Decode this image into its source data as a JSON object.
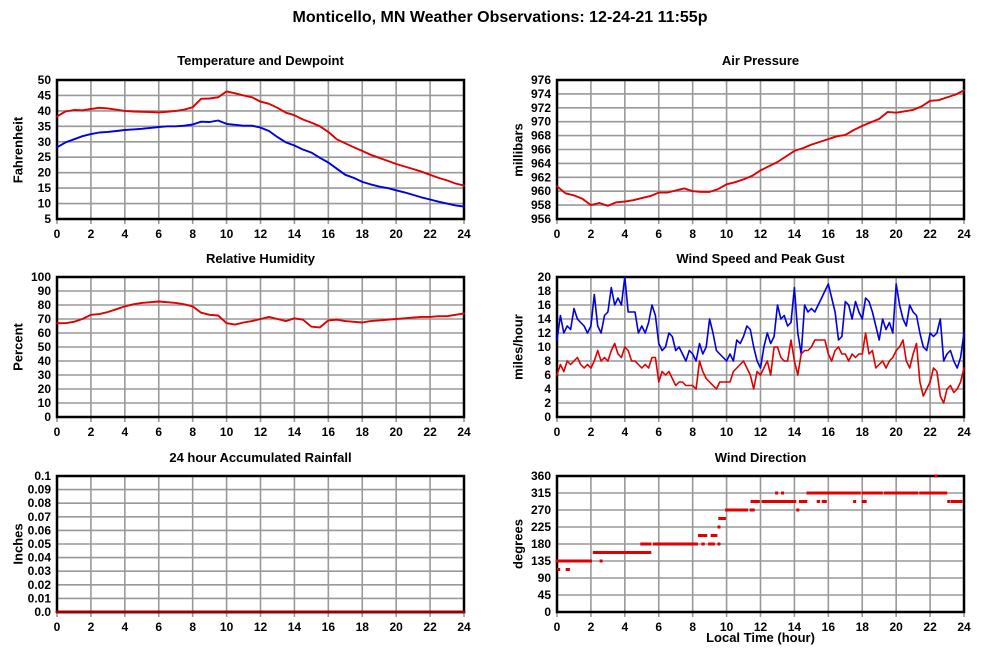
{
  "page": {
    "title": "Monticello, MN Weather Observations: 12-24-21 11:55p"
  },
  "colors": {
    "red": "#e00000",
    "blue": "#0000e0",
    "dark_red": "#990000",
    "grid": "#999999",
    "axis": "#000000",
    "background": "#ffffff"
  },
  "x_axis_label": "Local Time (hour)",
  "chart_data": [
    {
      "type": "line",
      "title": "Temperature and Dewpoint",
      "ylabel": "Fahrenheit",
      "xlabel": "",
      "xlim": [
        0,
        24
      ],
      "xtick_labels": [
        "0",
        "2",
        "4",
        "6",
        "8",
        "10",
        "12",
        "14",
        "16",
        "18",
        "20",
        "22",
        "24"
      ],
      "ylim": [
        5,
        50
      ],
      "ytick_labels": [
        "50",
        "45",
        "40",
        "35",
        "30",
        "25",
        "20",
        "15",
        "10",
        "5"
      ],
      "grid": true,
      "legend": "none",
      "series": [
        {
          "name": "temperature",
          "color": "red",
          "width": 1.9,
          "x0": 0,
          "dx": 0.5,
          "y": [
            38.2,
            39.8,
            40.3,
            40.2,
            40.6,
            41.0,
            40.8,
            40.4,
            40.0,
            39.8,
            39.7,
            39.6,
            39.5,
            39.7,
            40.0,
            40.4,
            41.2,
            43.9,
            44.0,
            44.4,
            46.3,
            45.7,
            45.0,
            44.4,
            43.0,
            42.3,
            41.0,
            39.4,
            38.6,
            37.2,
            36.2,
            35.0,
            33.2,
            30.8,
            29.5,
            28.2,
            27.0,
            25.8,
            24.8,
            23.8,
            22.8,
            22.0,
            21.2,
            20.3,
            19.3,
            18.3,
            17.5,
            16.5,
            15.8
          ]
        },
        {
          "name": "dewpoint",
          "color": "blue",
          "width": 1.9,
          "x0": 0,
          "dx": 0.5,
          "y": [
            28.2,
            29.8,
            30.8,
            31.8,
            32.5,
            33.0,
            33.2,
            33.5,
            33.8,
            34.0,
            34.2,
            34.5,
            34.8,
            35.0,
            35.0,
            35.2,
            35.6,
            36.5,
            36.4,
            36.9,
            35.8,
            35.5,
            35.2,
            35.2,
            34.6,
            33.5,
            31.5,
            29.8,
            28.8,
            27.5,
            26.5,
            24.8,
            23.3,
            21.3,
            19.3,
            18.3,
            17.0,
            16.2,
            15.5,
            15.0,
            14.3,
            13.6,
            12.8,
            12.0,
            11.3,
            10.6,
            10.0,
            9.4,
            9.0
          ]
        }
      ]
    },
    {
      "type": "line",
      "title": "Air Pressure",
      "ylabel": "millibars",
      "xlabel": "",
      "xlim": [
        0,
        24
      ],
      "xtick_labels": [
        "0",
        "2",
        "4",
        "6",
        "8",
        "10",
        "12",
        "14",
        "16",
        "18",
        "20",
        "22",
        "24"
      ],
      "ylim": [
        956,
        976
      ],
      "ytick_labels": [
        "976",
        "974",
        "972",
        "970",
        "968",
        "966",
        "964",
        "962",
        "960",
        "958",
        "956"
      ],
      "grid": true,
      "legend": "none",
      "series": [
        {
          "name": "pressure",
          "color": "red",
          "width": 1.9,
          "x0": 0,
          "dx": 0.5,
          "y": [
            960.7,
            959.7,
            959.4,
            958.9,
            958.0,
            958.3,
            957.9,
            958.4,
            958.5,
            958.7,
            959.0,
            959.3,
            959.8,
            959.8,
            960.1,
            960.4,
            960.0,
            959.9,
            959.9,
            960.3,
            961.0,
            961.3,
            961.7,
            962.2,
            963.0,
            963.6,
            964.2,
            965.0,
            965.8,
            966.2,
            966.7,
            967.1,
            967.5,
            967.9,
            968.1,
            968.8,
            969.4,
            969.9,
            970.4,
            971.4,
            971.3,
            971.5,
            971.7,
            972.2,
            973.0,
            973.1,
            973.5,
            973.9,
            974.5
          ]
        }
      ]
    },
    {
      "type": "line",
      "title": "Relative Humidity",
      "ylabel": "Percent",
      "xlabel": "",
      "xlim": [
        0,
        24
      ],
      "xtick_labels": [
        "0",
        "2",
        "4",
        "6",
        "8",
        "10",
        "12",
        "14",
        "16",
        "18",
        "20",
        "22",
        "24"
      ],
      "ylim": [
        0,
        100
      ],
      "ytick_labels": [
        "100",
        "90",
        "80",
        "70",
        "60",
        "50",
        "40",
        "30",
        "20",
        "10",
        "0"
      ],
      "grid": true,
      "legend": "none",
      "series": [
        {
          "name": "humidity",
          "color": "red",
          "width": 1.9,
          "x0": 0,
          "dx": 0.5,
          "y": [
            67,
            67,
            68,
            70,
            73,
            73.5,
            75,
            77,
            79,
            80.5,
            81.5,
            82,
            82.5,
            82,
            81.5,
            80.5,
            79,
            74.5,
            73,
            72.5,
            67,
            66,
            67.5,
            68.5,
            70,
            71.5,
            70,
            68.5,
            70.5,
            69.5,
            64.5,
            64,
            69,
            69.5,
            68.5,
            68,
            67.5,
            68.5,
            69,
            69.5,
            70,
            70.5,
            71,
            71.5,
            71.5,
            72,
            72,
            73,
            74
          ]
        }
      ]
    },
    {
      "type": "line",
      "title": "Wind Speed and Peak Gust",
      "ylabel": "miles/hour",
      "xlabel": "",
      "xlim": [
        0,
        24
      ],
      "xtick_labels": [
        "0",
        "2",
        "4",
        "6",
        "8",
        "10",
        "12",
        "14",
        "16",
        "18",
        "20",
        "22",
        "24"
      ],
      "ylim": [
        0,
        20
      ],
      "ytick_labels": [
        "20",
        "18",
        "16",
        "14",
        "12",
        "10",
        "8",
        "6",
        "4",
        "2",
        "0"
      ],
      "grid": true,
      "legend": "none",
      "series": [
        {
          "name": "peak_gust",
          "color": "blue",
          "width": 1.6,
          "x0": 0,
          "dx": 0.2,
          "y": [
            11,
            14.5,
            12,
            13,
            12.5,
            15.5,
            14,
            13.5,
            13,
            12,
            13,
            17.5,
            13,
            12,
            14.5,
            15,
            18.5,
            16,
            17,
            16,
            20,
            15,
            15,
            15,
            12,
            13,
            12,
            13.5,
            16,
            14.5,
            10.5,
            9.5,
            10,
            12,
            11.5,
            9.5,
            10,
            9,
            8,
            9.5,
            9,
            8,
            10.5,
            9,
            10,
            14,
            12,
            9.5,
            9,
            8.5,
            8,
            9,
            8,
            11,
            10.5,
            11.5,
            13,
            12.5,
            10,
            8,
            7,
            10,
            12,
            10.5,
            11.5,
            16,
            14,
            14.5,
            13,
            13.5,
            18.5,
            12,
            9,
            16,
            15,
            15.5,
            15,
            16,
            17,
            18,
            19,
            17,
            15,
            11,
            11.5,
            16.5,
            16,
            14,
            16.5,
            15,
            14,
            17,
            16.5,
            15,
            13,
            11,
            14,
            12.5,
            13.5,
            12,
            19,
            16,
            14,
            13,
            16,
            15,
            14.5,
            12,
            10,
            9.5,
            12,
            11.5,
            12,
            14,
            8,
            9,
            9.5,
            8,
            7,
            8.5,
            12
          ]
        },
        {
          "name": "wind_speed",
          "color": "red",
          "width": 1.6,
          "x0": 0,
          "dx": 0.2,
          "y": [
            6,
            7.5,
            6.5,
            8,
            7.5,
            8,
            8.5,
            7.5,
            7,
            7.5,
            7,
            8,
            9.5,
            8,
            8.5,
            8,
            9.5,
            10.5,
            9,
            8.5,
            10,
            9.5,
            8,
            8,
            7.5,
            7,
            7.5,
            7,
            8.5,
            8.5,
            5,
            6.5,
            6,
            6.5,
            5.5,
            4.5,
            5,
            5,
            4.5,
            4.5,
            4.5,
            4,
            8,
            6.5,
            5.5,
            5,
            4.5,
            4,
            5,
            5,
            5,
            5,
            6.5,
            7,
            7.5,
            8,
            7,
            6,
            4,
            6.5,
            6,
            7,
            8,
            6,
            10,
            10,
            8.5,
            8,
            8,
            11,
            8,
            6,
            9,
            9.5,
            9.5,
            10,
            11,
            11,
            11,
            11,
            9,
            8,
            9.5,
            10,
            9,
            9,
            8,
            9,
            8.5,
            9,
            9,
            12,
            9,
            9.5,
            7,
            7.5,
            8,
            7,
            8,
            8.5,
            9.5,
            10,
            11,
            8,
            7,
            9,
            10.5,
            5,
            3,
            4,
            5,
            7,
            6.5,
            3,
            2,
            4,
            4.5,
            3.5,
            4,
            5,
            7
          ]
        }
      ]
    },
    {
      "type": "line",
      "title": "24 hour Accumulated Rainfall",
      "ylabel": "Inches",
      "xlabel": "",
      "xlim": [
        0,
        24
      ],
      "xtick_labels": [
        "0",
        "2",
        "4",
        "6",
        "8",
        "10",
        "12",
        "14",
        "16",
        "18",
        "20",
        "22",
        "24"
      ],
      "ylim": [
        0,
        0.1
      ],
      "ytick_labels": [
        "0.1",
        "0.09",
        "0.08",
        "0.07",
        "0.06",
        "0.05",
        "0.04",
        "0.03",
        "0.02",
        "0.01",
        "0.0"
      ],
      "grid": true,
      "legend": "none",
      "series": [
        {
          "name": "rainfall",
          "color": "dark_red",
          "width": 3,
          "x0": 0,
          "dx": 24,
          "y": [
            0,
            0
          ]
        }
      ]
    },
    {
      "type": "scatter",
      "title": "Wind Direction",
      "ylabel": "degrees",
      "xlabel": "Local Time (hour)",
      "xlim": [
        0,
        24
      ],
      "xtick_labels": [
        "0",
        "2",
        "4",
        "6",
        "8",
        "10",
        "12",
        "14",
        "16",
        "18",
        "20",
        "22",
        "24"
      ],
      "ylim": [
        0,
        360
      ],
      "ytick_labels": [
        "360",
        "315",
        "270",
        "225",
        "180",
        "135",
        "90",
        "45",
        "0"
      ],
      "grid": true,
      "legend": "none",
      "series": [
        {
          "name": "wind_direction",
          "color": "red",
          "marker": "square",
          "segments": [
            [
              0.1,
              0.25,
              112.5
            ],
            [
              0.6,
              0.85,
              112.5
            ],
            [
              0.0,
              2.15,
              135
            ],
            [
              2.6,
              2.75,
              135
            ],
            [
              2.2,
              5.65,
              157.5
            ],
            [
              5.0,
              5.65,
              180
            ],
            [
              5.75,
              8.4,
              180
            ],
            [
              8.6,
              8.8,
              180
            ],
            [
              9.0,
              9.4,
              180
            ],
            [
              9.55,
              9.7,
              180
            ],
            [
              8.4,
              8.95,
              202.5
            ],
            [
              9.15,
              9.55,
              202.5
            ],
            [
              9.55,
              9.7,
              225
            ],
            [
              9.6,
              10.05,
              247.5
            ],
            [
              10.0,
              11.35,
              270
            ],
            [
              11.45,
              11.75,
              270
            ],
            [
              14.2,
              14.35,
              270
            ],
            [
              11.5,
              12.05,
              292.5
            ],
            [
              12.15,
              14.2,
              292.5
            ],
            [
              14.35,
              14.85,
              292.5
            ],
            [
              15.4,
              15.6,
              292.5
            ],
            [
              15.7,
              16.0,
              292.5
            ],
            [
              17.55,
              17.7,
              292.5
            ],
            [
              18.05,
              18.35,
              292.5
            ],
            [
              23.1,
              23.2,
              292.5
            ],
            [
              23.3,
              24.0,
              292.5
            ],
            [
              12.95,
              13.1,
              315
            ],
            [
              13.3,
              13.45,
              315
            ],
            [
              14.8,
              18.0,
              315
            ],
            [
              18.05,
              19.3,
              315
            ],
            [
              19.35,
              21.4,
              315
            ],
            [
              21.45,
              23.1,
              315
            ],
            [
              22.35,
              22.5,
              360
            ]
          ]
        }
      ]
    }
  ]
}
